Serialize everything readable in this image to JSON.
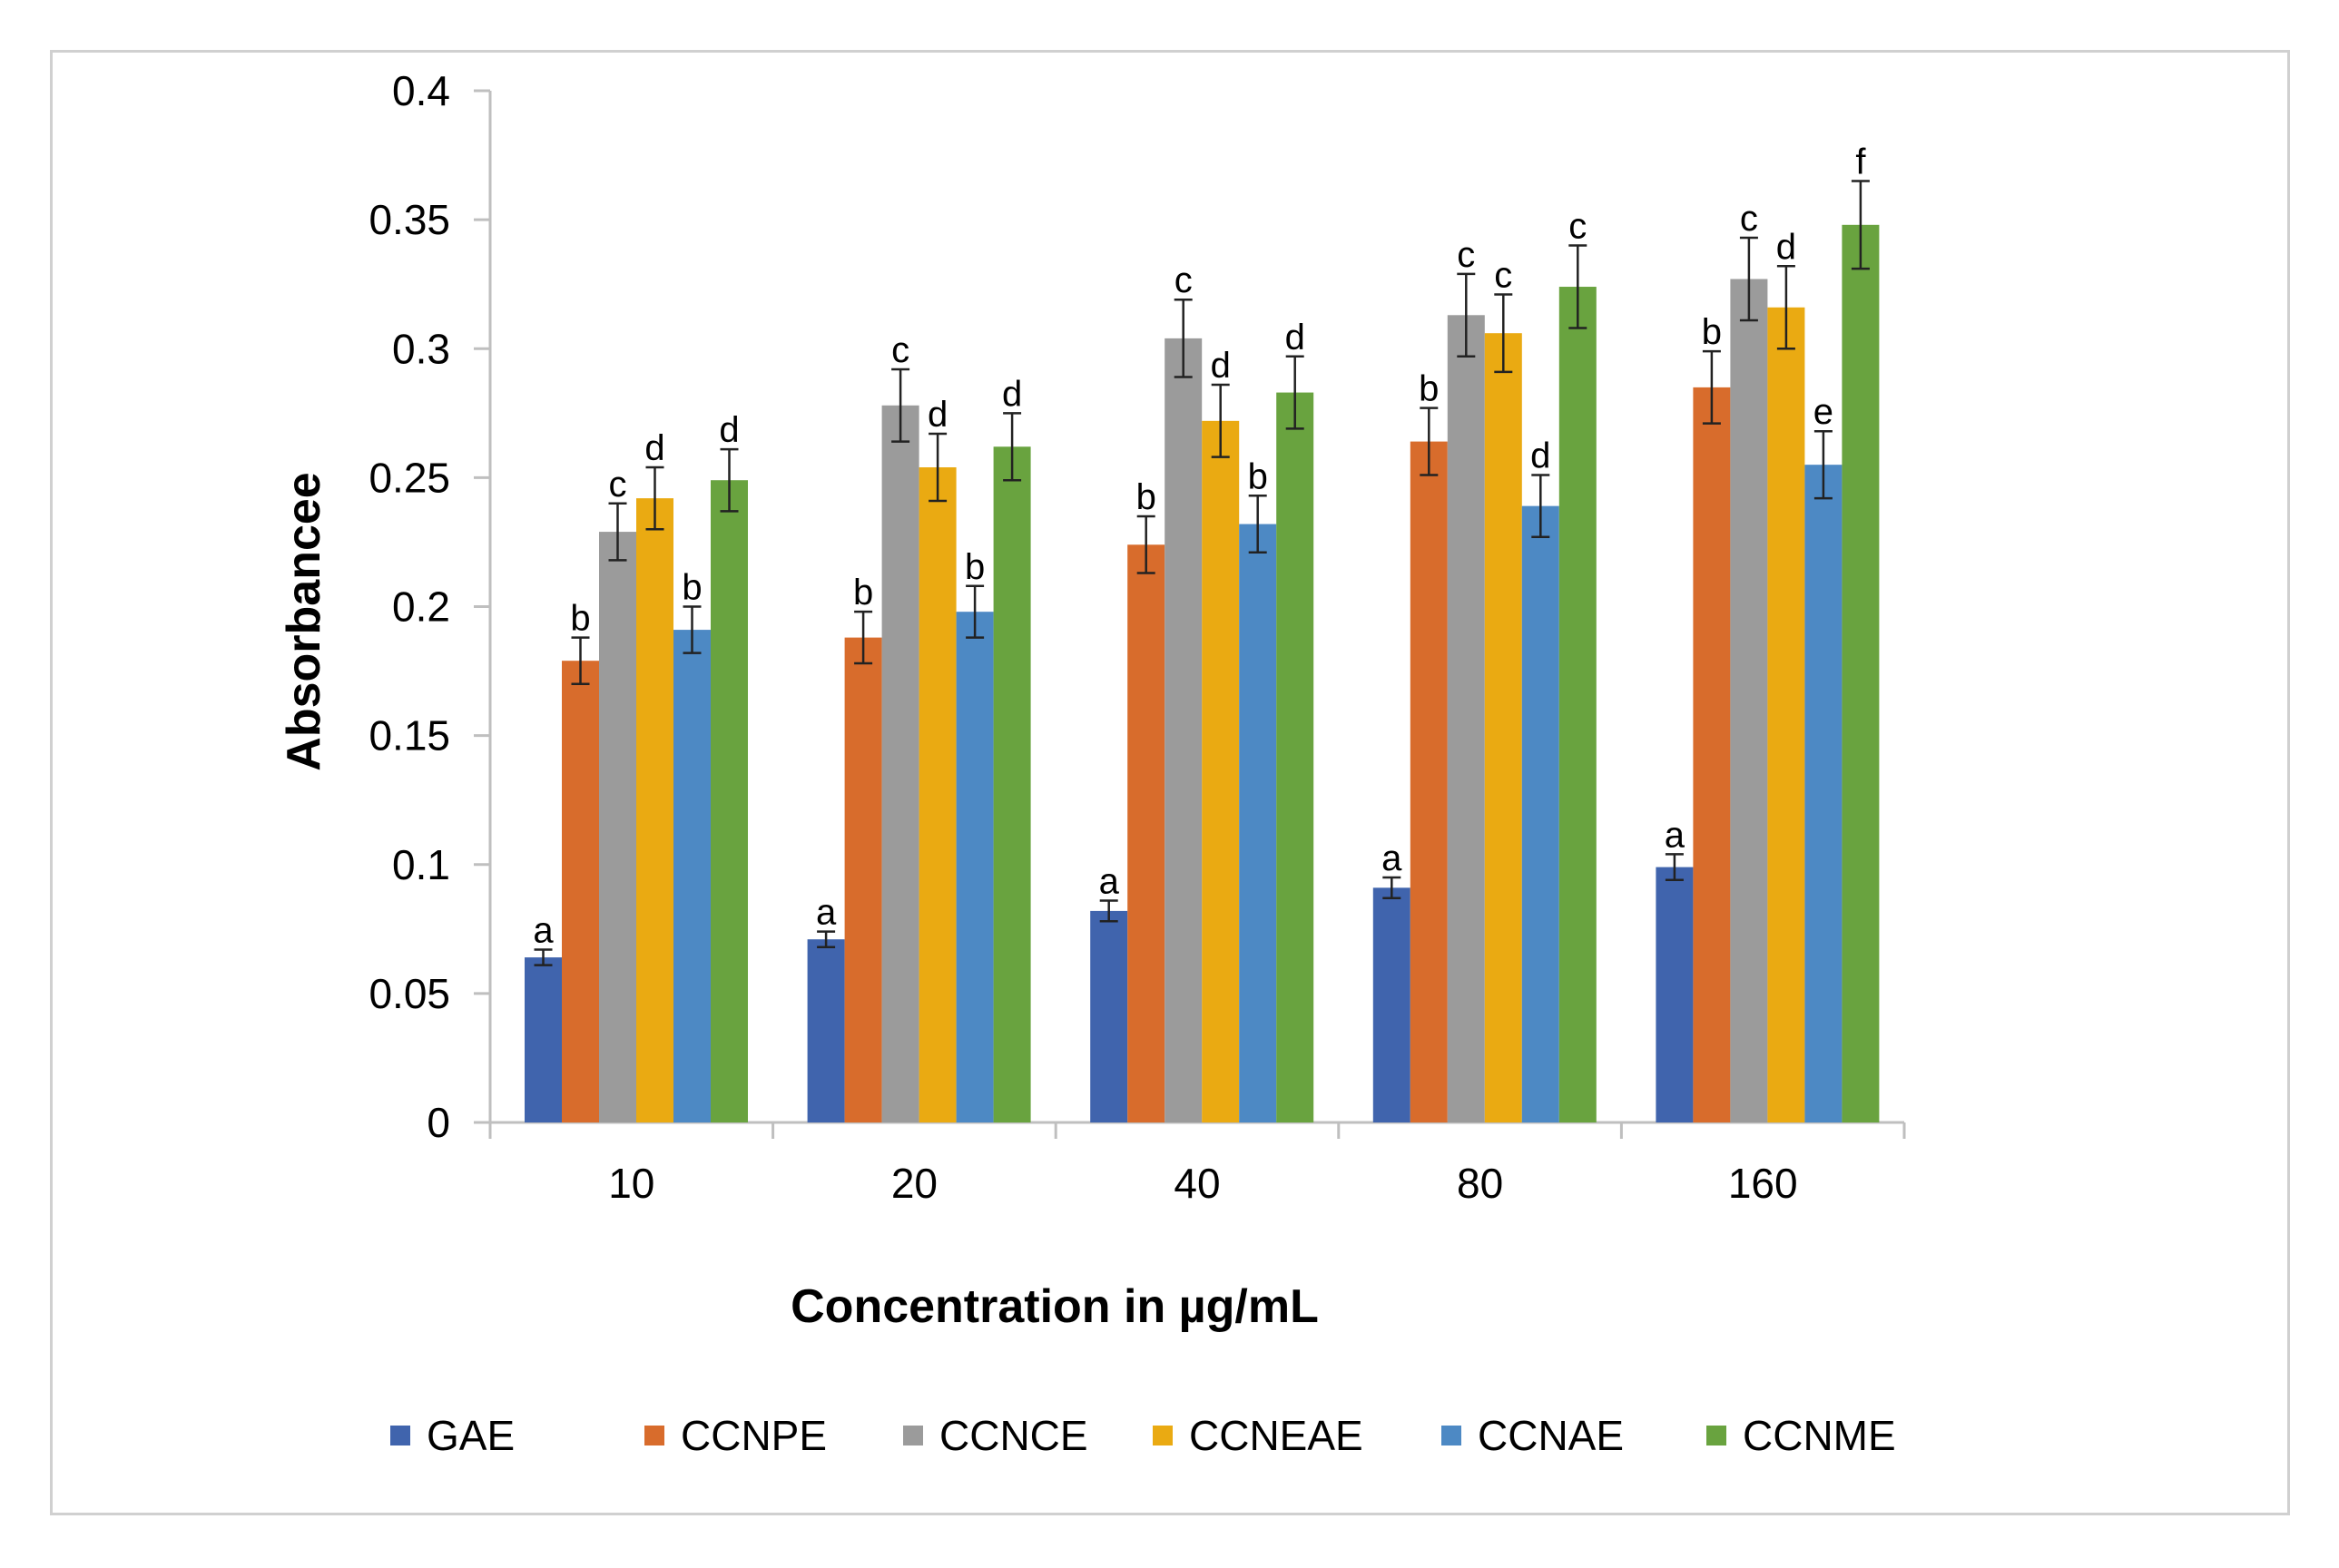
{
  "chart_data": {
    "type": "bar",
    "title": "",
    "xlabel": "Concentration in µg/mL",
    "ylabel": "Absorbancee",
    "ylim": [
      0,
      0.4
    ],
    "yticks": [
      0,
      0.05,
      0.1,
      0.15,
      0.2,
      0.25,
      0.3,
      0.35,
      0.4
    ],
    "ytick_labels": [
      "0",
      "0.05",
      "0.1",
      "0.15",
      "0.2",
      "0.25",
      "0.3",
      "0.35",
      "0.4"
    ],
    "categories": [
      "10",
      "20",
      "40",
      "80",
      "160"
    ],
    "grid": false,
    "legend_position": "bottom",
    "series": [
      {
        "name": "GAE",
        "color": "#4064ad",
        "values": [
          0.064,
          0.071,
          0.082,
          0.091,
          0.099
        ],
        "errors": [
          0.003,
          0.003,
          0.004,
          0.004,
          0.005
        ],
        "labels": [
          "a",
          "a",
          "a",
          "a",
          "a"
        ]
      },
      {
        "name": "CCNPE",
        "color": "#d86c2c",
        "values": [
          0.179,
          0.188,
          0.224,
          0.264,
          0.285
        ],
        "errors": [
          0.009,
          0.01,
          0.011,
          0.013,
          0.014
        ],
        "labels": [
          "b",
          "b",
          "b",
          "b",
          "b"
        ]
      },
      {
        "name": "CCNCE",
        "color": "#9b9b9b",
        "values": [
          0.229,
          0.278,
          0.304,
          0.313,
          0.327
        ],
        "errors": [
          0.011,
          0.014,
          0.015,
          0.016,
          0.016
        ],
        "labels": [
          "c",
          "c",
          "c",
          "c",
          "c"
        ]
      },
      {
        "name": "CCNEAE",
        "color": "#eaaa12",
        "values": [
          0.242,
          0.254,
          0.272,
          0.306,
          0.316
        ],
        "errors": [
          0.012,
          0.013,
          0.014,
          0.015,
          0.016
        ],
        "labels": [
          "d",
          "d",
          "d",
          "c",
          "d"
        ]
      },
      {
        "name": "CCNAE",
        "color": "#4d89c4",
        "values": [
          0.191,
          0.198,
          0.232,
          0.239,
          0.255
        ],
        "errors": [
          0.009,
          0.01,
          0.011,
          0.012,
          0.013
        ],
        "labels": [
          "b",
          "b",
          "b",
          "d",
          "e"
        ]
      },
      {
        "name": "CCNME",
        "color": "#69a33f",
        "values": [
          0.249,
          0.262,
          0.283,
          0.324,
          0.348
        ],
        "errors": [
          0.012,
          0.013,
          0.014,
          0.016,
          0.017
        ],
        "labels": [
          "d",
          "d",
          "d",
          "c",
          "f"
        ]
      }
    ]
  }
}
